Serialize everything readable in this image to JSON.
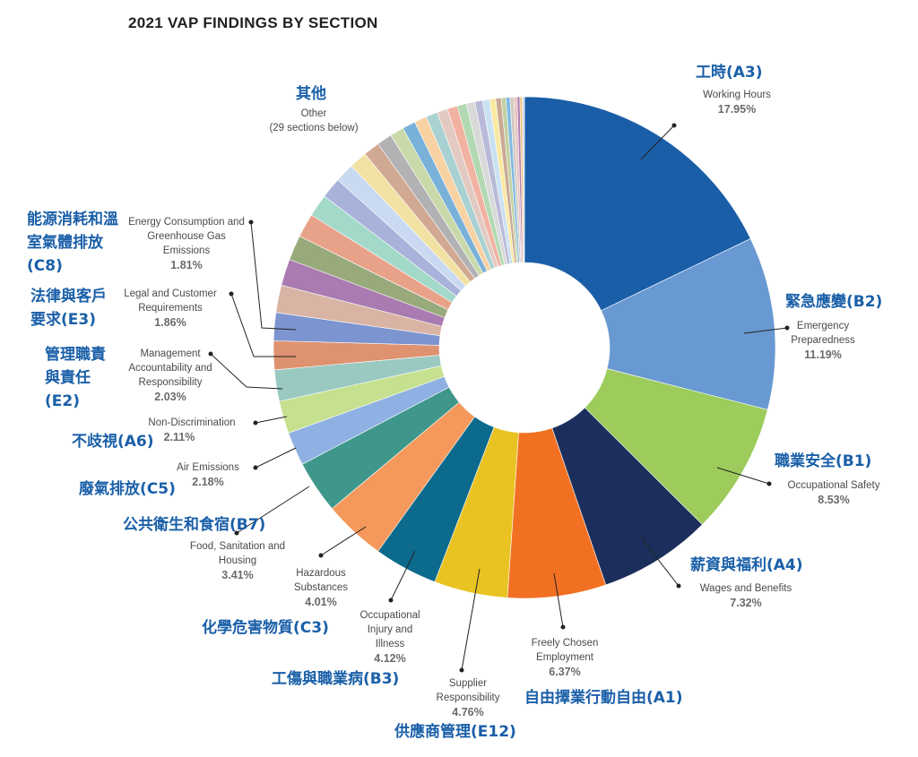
{
  "chart_data": {
    "type": "pie",
    "title": "2021 VAP FINDINGS BY SECTION",
    "donut": true,
    "slices": [
      {
        "zh": "工時(A3)",
        "en": "Working Hours",
        "value": 17.95,
        "pct": "17.95%",
        "color": "#1b5ea8"
      },
      {
        "zh": "緊急應變(B2)",
        "en": "Emergency Preparedness",
        "value": 11.19,
        "pct": "11.19%",
        "color": "#6899d2"
      },
      {
        "zh": "職業安全(B1)",
        "en": "Occupational Safety",
        "value": 8.53,
        "pct": "8.53%",
        "color": "#9dcb5c"
      },
      {
        "zh": "薪資與福利(A4)",
        "en": "Wages and Benefits",
        "value": 7.32,
        "pct": "7.32%",
        "color": "#1c2f5c"
      },
      {
        "zh": "自由擇業行動自由(A1)",
        "en": "Freely Chosen Employment",
        "value": 6.37,
        "pct": "6.37%",
        "color": "#f27022"
      },
      {
        "zh": "供應商管理(E12)",
        "en": "Supplier Responsibility",
        "value": 4.76,
        "pct": "4.76%",
        "color": "#e9c322"
      },
      {
        "zh": "工傷與職業病(B3)",
        "en": "Occupational Injury and Illness",
        "value": 4.12,
        "pct": "4.12%",
        "color": "#0c6a8c"
      },
      {
        "zh": "化學危害物質(C3)",
        "en": "Hazardous Substances",
        "value": 4.01,
        "pct": "4.01%",
        "color": "#f4995b"
      },
      {
        "zh": "公共衛生和食宿(B7)",
        "en": "Food, Sanitation and Housing",
        "value": 3.41,
        "pct": "3.41%",
        "color": "#3e978a"
      },
      {
        "zh": "廢氣排放(C5)",
        "en": "Air Emissions",
        "value": 2.18,
        "pct": "2.18%",
        "color": "#8fb0e2"
      },
      {
        "zh": "不歧視(A6)",
        "en": "Non-Discrimination",
        "value": 2.11,
        "pct": "2.11%",
        "color": "#c5e190"
      },
      {
        "zh": "管理職責與責任(E2)",
        "en": "Management Accountability and Responsibility",
        "value": 2.03,
        "pct": "2.03%",
        "color": "#9ac9c1"
      },
      {
        "zh": "法律與客戶要求(E3)",
        "en": "Legal and Customer Requirements",
        "value": 1.86,
        "pct": "1.86%",
        "color": "#df9270"
      },
      {
        "zh": "能源消耗和溫室氣體排放(C8)",
        "en": "Energy Consumption and Greenhouse Gas Emissions",
        "value": 1.81,
        "pct": "1.81%",
        "color": "#7c94d0"
      }
    ],
    "other": {
      "zh": "其他",
      "en": "Other",
      "note": "(29 sections below)",
      "values": [
        1.78,
        1.72,
        1.62,
        1.55,
        1.45,
        1.35,
        1.25,
        1.15,
        1.05,
        0.98,
        0.9,
        0.85,
        0.8,
        0.75,
        0.7,
        0.65,
        0.6,
        0.55,
        0.5,
        0.45,
        0.4,
        0.35,
        0.3,
        0.27,
        0.24,
        0.21,
        0.18,
        0.15,
        0.14
      ],
      "colors": [
        "#d9b4a4",
        "#a97bb1",
        "#98a97a",
        "#e9a28a",
        "#a3d9c9",
        "#a9b2da",
        "#c9d9f1",
        "#f1e2a3",
        "#d1a993",
        "#b2b2b4",
        "#c9d9aa",
        "#79b1d9",
        "#f8d2a2",
        "#a9d1d1",
        "#e2cac2",
        "#f1b2a2",
        "#b2d9b2",
        "#d9d9d9",
        "#b9b9d9",
        "#c9e1f1",
        "#f9e9a2",
        "#c9a993",
        "#c1d1a2",
        "#81b9e1",
        "#d1c9c1",
        "#e9c1c1",
        "#b181b1",
        "#f1c171",
        "#c9d9f1"
      ]
    }
  }
}
